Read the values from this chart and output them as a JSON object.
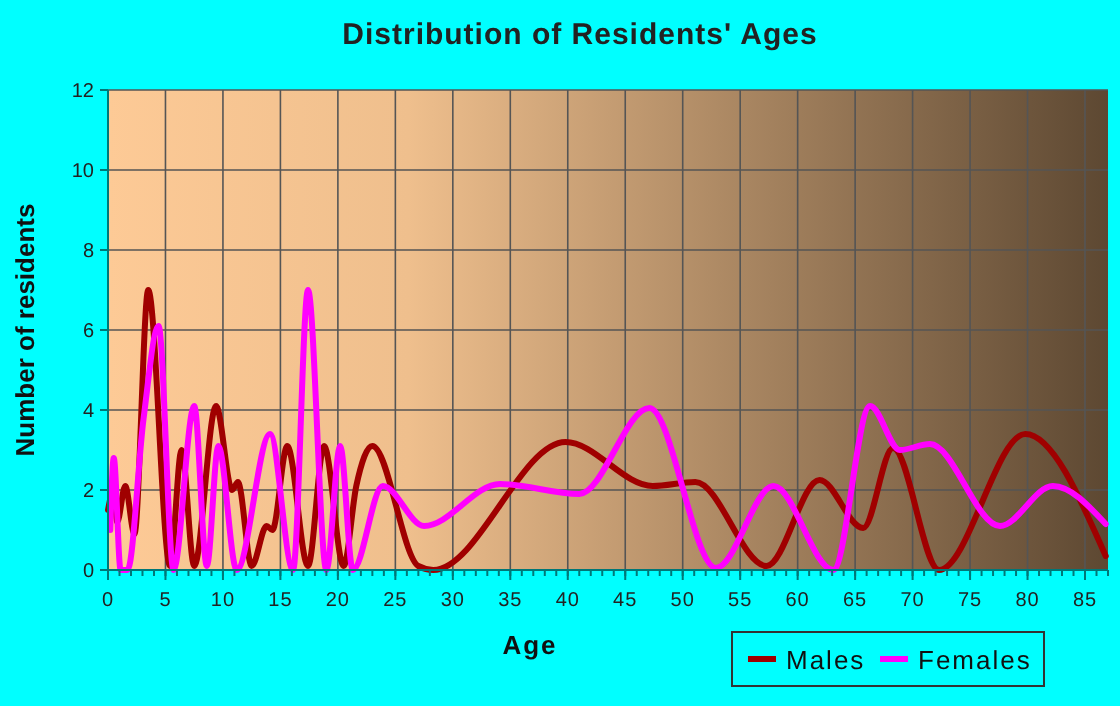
{
  "chart_data": {
    "type": "line",
    "title": "Distribution of Residents' Ages",
    "xlabel": "Age",
    "ylabel": "Number of residents",
    "xlim": [
      0,
      87
    ],
    "xticks": [
      0,
      5,
      10,
      15,
      20,
      25,
      30,
      35,
      40,
      45,
      50,
      55,
      60,
      65,
      70,
      75,
      80,
      85
    ],
    "ylim": [
      0,
      12
    ],
    "yticks": [
      0,
      2,
      4,
      6,
      8,
      10,
      12
    ],
    "grid": true,
    "legend": "bottom right",
    "marker": "none",
    "line_style": "solid",
    "series": [
      {
        "name": "Males",
        "color": "#a00000",
        "x": [
          0,
          0.5,
          0.8,
          1.5,
          2.3,
          3.5,
          5.4,
          6.4,
          7.5,
          9.4,
          10.8,
          11.3,
          12.5,
          13.8,
          14.3,
          15.6,
          17.4,
          18.8,
          20.5,
          21.6,
          23,
          27,
          28.3,
          39.8,
          47.4,
          51.1,
          57.3,
          61.9,
          65.7,
          68.3,
          72.3,
          79.8,
          86.8
        ],
        "values": [
          1.5,
          2,
          1.2,
          2.1,
          0.9,
          7,
          0.1,
          3,
          0.1,
          4.1,
          2,
          2.2,
          0.1,
          1.1,
          1,
          3.1,
          0.1,
          3.1,
          0.1,
          2.1,
          3.1,
          0.1,
          0,
          3.2,
          2.1,
          2.2,
          0.1,
          2.25,
          1.05,
          3.05,
          0,
          3.4,
          0.35
        ]
      },
      {
        "name": "Females",
        "color": "#ff00ff",
        "x": [
          0.2,
          0.5,
          1.1,
          1.7,
          3.1,
          4.4,
          5.7,
          7.5,
          8.6,
          9.6,
          11.2,
          14.1,
          16.1,
          17.4,
          19,
          20.2,
          21.3,
          23.9,
          27.5,
          34.1,
          41,
          47.1,
          52.9,
          57.9,
          63.1,
          66.3,
          68.9,
          71.5,
          77.6,
          82.2,
          86.8
        ],
        "values": [
          1,
          2.8,
          0,
          0,
          3.8,
          6.1,
          0,
          4.1,
          0.1,
          3.1,
          0,
          3.4,
          0,
          7,
          0,
          3.1,
          0,
          2.1,
          1.1,
          2.15,
          1.9,
          4.05,
          0.05,
          2.1,
          0,
          4.1,
          3,
          3.15,
          1.1,
          2.1,
          1.15
        ]
      }
    ]
  }
}
